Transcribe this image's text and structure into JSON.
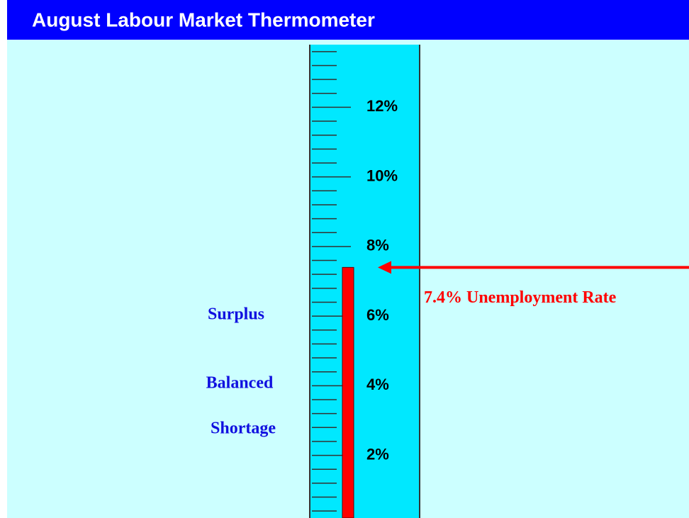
{
  "chart_data": {
    "type": "thermometer",
    "title": "August Labour Market Thermometer",
    "values": [
      7.4
    ],
    "value_labels": [
      "7.4% Unemployment Rate"
    ],
    "color": "#ff0000",
    "ylim": [
      0.2,
      13.8
    ],
    "yticks": [
      {
        "value": 2,
        "label": "2%"
      },
      {
        "value": 4,
        "label": "4%"
      },
      {
        "value": 6,
        "label": "6%"
      },
      {
        "value": 8,
        "label": "8%"
      },
      {
        "value": 10,
        "label": "10%"
      },
      {
        "value": 12,
        "label": "12%"
      }
    ],
    "annotations": [
      "Surplus",
      "Balanced",
      "Shortage"
    ]
  }
}
